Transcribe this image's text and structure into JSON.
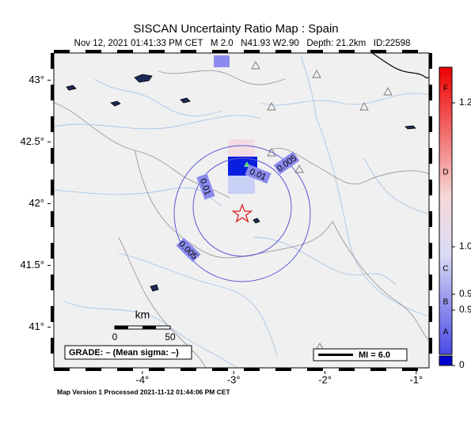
{
  "map": {
    "title": "SISCAN Uncertainty Ratio Map : Spain",
    "subtitle": "Nov 12, 2021 01:41:33 PM CET   M 2.0   N41.93 W2.90   Depth: 21.2km   ID:22598",
    "xlim": [
      -4.97,
      -0.86
    ],
    "ylim": [
      40.67,
      43.22
    ],
    "lat_ticks": [
      {
        "value": 43,
        "label": "43°"
      },
      {
        "value": 42.5,
        "label": "42.5°"
      },
      {
        "value": 42,
        "label": "42°"
      },
      {
        "value": 41.5,
        "label": "41.5°"
      },
      {
        "value": 41,
        "label": "41°"
      }
    ],
    "lon_ticks": [
      {
        "value": -4,
        "label": "-4°"
      },
      {
        "value": -3,
        "label": "-3°"
      },
      {
        "value": -2,
        "label": "-2°"
      },
      {
        "value": -1,
        "label": "-1°"
      }
    ],
    "contour_labels": [
      "0.01",
      "0.01",
      "0.005",
      "0.005"
    ],
    "scale": {
      "title": "km",
      "start": "0",
      "end": "50"
    },
    "grade": "GRADE: – (Mean sigma: –)",
    "mi_label": "MI = 6.0",
    "colorbar": {
      "letters": [
        "F",
        "D",
        "C",
        "B",
        "A"
      ],
      "values": [
        "1.2",
        "1.0",
        "0.9",
        "0.9",
        "0"
      ]
    },
    "footer": "Map Version 1 Processed 2021-11-12 01:44:06 PM CET"
  }
}
